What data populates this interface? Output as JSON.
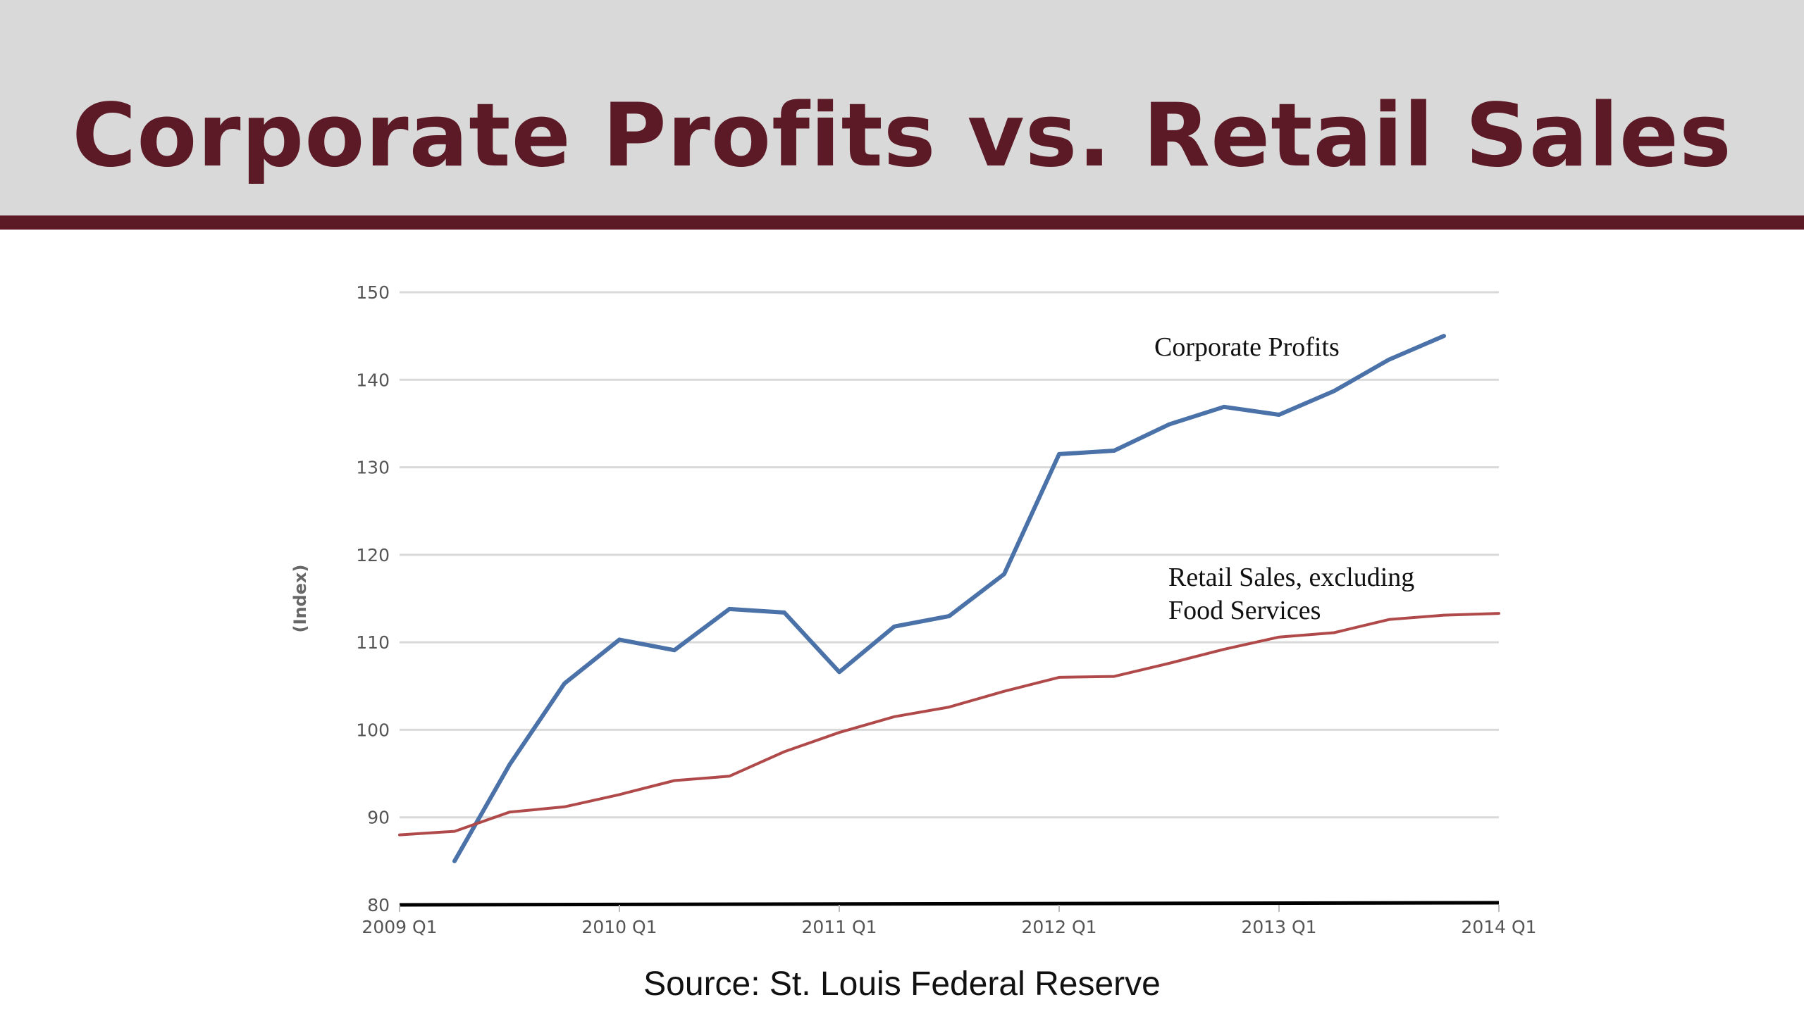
{
  "slide": {
    "title": "Corporate Profits vs. Retail Sales",
    "source": "Source:  St. Louis Federal Reserve"
  },
  "colors": {
    "title": "#5c1a26",
    "header_bg": "#d9d9d9",
    "corporate_profits": "#4a72a9",
    "retail_sales": "#b04a4a",
    "grid": "#d9d9d9",
    "axis": "#000000"
  },
  "chart_data": {
    "type": "line",
    "ylabel": "(Index)",
    "xlabel": "",
    "ylim": [
      80,
      150
    ],
    "yticks": [
      80,
      90,
      100,
      110,
      120,
      130,
      140,
      150
    ],
    "xticks": [
      "2009 Q1",
      "2010 Q1",
      "2011 Q1",
      "2012 Q1",
      "2013 Q1",
      "2014 Q1"
    ],
    "grid": true,
    "series": [
      {
        "name": "Corporate Profits",
        "label_lines": [
          "Corporate Profits"
        ],
        "x": [
          "2009 Q2",
          "2009 Q3",
          "2009 Q4",
          "2010 Q1",
          "2010 Q2",
          "2010 Q3",
          "2010 Q4",
          "2011 Q1",
          "2011 Q2",
          "2011 Q3",
          "2011 Q4",
          "2012 Q1",
          "2012 Q2",
          "2012 Q3",
          "2012 Q4",
          "2013 Q1",
          "2013 Q2",
          "2013 Q3",
          "2013 Q4"
        ],
        "values": [
          85.0,
          96.0,
          105.3,
          110.3,
          109.1,
          113.8,
          113.4,
          106.6,
          111.8,
          113.0,
          117.8,
          131.5,
          131.9,
          134.9,
          136.9,
          136.0,
          138.7,
          142.3,
          145.0
        ]
      },
      {
        "name": "Retail Sales, excluding Food Services",
        "label_lines": [
          "Retail Sales, excluding",
          "Food Services"
        ],
        "x": [
          "2009 Q1",
          "2009 Q2",
          "2009 Q3",
          "2009 Q4",
          "2010 Q1",
          "2010 Q2",
          "2010 Q3",
          "2010 Q4",
          "2011 Q1",
          "2011 Q2",
          "2011 Q3",
          "2011 Q4",
          "2012 Q1",
          "2012 Q2",
          "2012 Q3",
          "2012 Q4",
          "2013 Q1",
          "2013 Q2",
          "2013 Q3",
          "2013 Q4",
          "2014 Q1"
        ],
        "values": [
          88.0,
          88.4,
          90.6,
          91.2,
          92.6,
          94.2,
          94.7,
          97.5,
          99.7,
          101.5,
          102.6,
          104.4,
          106.0,
          106.1,
          107.6,
          109.2,
          110.6,
          111.1,
          112.6,
          113.1,
          113.3
        ]
      }
    ]
  }
}
